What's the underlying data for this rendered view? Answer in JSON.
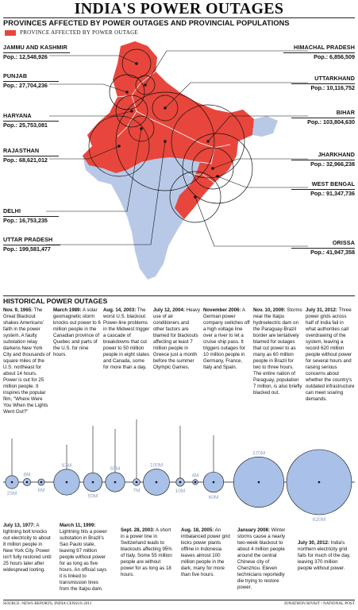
{
  "title": "INDIA'S POWER OUTAGES",
  "subtitle": "PROVINCES AFFECTED BY POWER OUTAGES AND PROVINCIAL POPULATIONS",
  "legend_label": "PROVINCE AFFECTED BY POWER OUTAGE",
  "colors": {
    "affected": "#e8463c",
    "land": "#b8c9e8",
    "bubble": "#a9c0e8"
  },
  "states_left": [
    {
      "name": "JAMMU AND KASHMIR",
      "pop": "Pop.: 12,548,926"
    },
    {
      "name": "PUNJAB",
      "pop": "Pop.: 27,704,236"
    },
    {
      "name": "HARYANA",
      "pop": "Pop.: 25,753,081"
    },
    {
      "name": "RAJASTHAN",
      "pop": "Pop.: 68,621,012"
    },
    {
      "name": "DELHI",
      "pop": "Pop.: 16,753,235"
    },
    {
      "name": "UTTAR PRADESH",
      "pop": "Pop.: 199,581,477"
    }
  ],
  "states_right": [
    {
      "name": "HIMACHAL PRADESH",
      "pop": "Pop.: 6,856,509"
    },
    {
      "name": "UTTARKHAND",
      "pop": "Pop.: 10,116,752"
    },
    {
      "name": "BIHAR",
      "pop": "Pop.: 103,804,630"
    },
    {
      "name": "JHARKHAND",
      "pop": "Pop.: 32,966,238"
    },
    {
      "name": "WEST BENGAL",
      "pop": "Pop.: 91,347,736"
    },
    {
      "name": "ORISSA",
      "pop": "Pop.: 41,947,358"
    }
  ],
  "historical_title": "HISTORICAL POWER OUTAGES",
  "events_top": [
    {
      "date": "Nov. 9, 1965:",
      "text": "The Great Blackout shakes Americans' faith in the power system. A faulty substation relay darkens New York City and thousands of square miles of the U.S. northeast for about 14 hours. Power is out for 25 million people. It inspires the popular film, \"Where Were You When the Lights Went Out?\""
    },
    {
      "date": "March 1989:",
      "text": "A solar geomagnetic storm knocks out power to 6 million people in the Canadian province of Quebec and parts of the U.S. for nine hours."
    },
    {
      "date": "Aug. 14, 2003:",
      "text": "The worst U.S. blackout. Power-line problems in the Midwest trigger a cascade of breakdowns that cut power to 50 million people in eight states and Canada, some for more than a day."
    },
    {
      "date": "July 12, 2004:",
      "text": "Heavy use of air conditioners and other factors are blamed for blackouts affecting at least 7 million people in Greece just a month before the summer Olympic Games."
    },
    {
      "date": "November 2006:",
      "text": "A German power company switches off a high voltage line over a river to let a cruise ship pass. It triggers outages for 10 million people in Germany, France, Italy and Spain."
    },
    {
      "date": "Nov. 10, 2009:",
      "text": "Storms near the Itaipu hydroelectric dam on the Paraguay-Brazil border are tentatively blamed for outages that cut power to as many as 60 million people in Brazil for two to three hours. The entire nation of Paraguay, population 7 million, is also briefly blacked out."
    },
    {
      "date": "July 31, 2012:",
      "text": "Three power grids across half of India fail in what authorities call overdrawing of the system, leaving a record 620 million people without power for several hours and raising serious concerns about whether the country's outdated infrastructure can meet soaring demands."
    }
  ],
  "events_bottom": [
    {
      "date": "July 13, 1977:",
      "text": "A lightning bolt knocks out electricity to about 8 million people in New York City. Power isn't fully restored until 25 hours later after widespread looting."
    },
    {
      "date": "March 11, 1999:",
      "text": "Lightning hits a power substation in Brazil's Sao Paulo state, leaving 97 million people without power for as long as five hours. An official says it is linked to transmission lines from the Itaipu dam."
    },
    {
      "date": "Sept. 28, 2003:",
      "text": "A short in a power line in Switzerland leads to blackouts affecting 95% of Italy. Some 55 million people are without power for as long as 18 hours."
    },
    {
      "date": "Aug. 18, 2005:",
      "text": "An imbalanced power grid kicks power plants offline in Indonesia leaves almost 100 million people in the dark, many for more than five hours."
    },
    {
      "date": "January 2008:",
      "text": "Winter storms cause a nearly two-week blackout to about 4 million people around the central Chinese city of Chenzhou. Eleven technicians reportedly die trying to restore power."
    },
    {
      "date": "July 30, 2012:",
      "text": "India's northern electricity grid fails for much of the day, leaving 370 million people without power."
    }
  ],
  "bubbles": [
    {
      "label": "25M",
      "value": 25
    },
    {
      "label": "8M",
      "value": 8
    },
    {
      "label": "6M",
      "value": 6
    },
    {
      "label": "97M",
      "value": 97
    },
    {
      "label": "50M",
      "value": 50
    },
    {
      "label": "55M",
      "value": 55
    },
    {
      "label": "7M",
      "value": 7
    },
    {
      "label": "100M",
      "value": 100
    },
    {
      "label": "10M",
      "value": 10
    },
    {
      "label": "4M",
      "value": 4
    },
    {
      "label": "60M",
      "value": 60
    },
    {
      "label": "370M",
      "value": 370
    },
    {
      "label": "620M",
      "value": 620
    }
  ],
  "footer_source": "SOURCE: NEWS REPORTS, INDIA CENSUS 2011",
  "footer_credit": "JONATHON RIVAIT / NATIONAL POST"
}
